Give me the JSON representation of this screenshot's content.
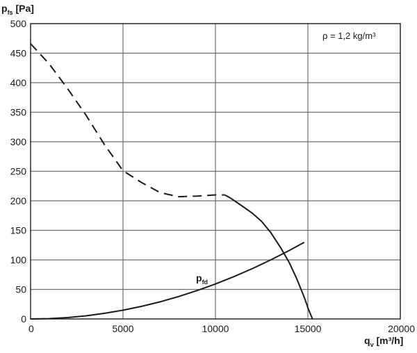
{
  "chart_data": {
    "type": "line",
    "x_axis": {
      "label_main": "q",
      "label_sub": "v",
      "label_unit": " [m³/h]",
      "min": 0,
      "max": 20000,
      "ticks": [
        0,
        5000,
        10000,
        15000,
        20000
      ],
      "tick_labels": [
        "0",
        "5000",
        "10000",
        "15000",
        "20000"
      ]
    },
    "y_axis": {
      "label_main": "p",
      "label_sub": "fs",
      "label_unit": " [Pa]",
      "min": 0,
      "max": 500,
      "ticks": [
        0,
        50,
        100,
        150,
        200,
        250,
        300,
        350,
        400,
        450,
        500
      ],
      "tick_labels": [
        "0",
        "50",
        "100",
        "150",
        "200",
        "250",
        "300",
        "350",
        "400",
        "450",
        "500"
      ]
    },
    "grid": true,
    "annotation": "ρ = 1,2 kg/m³",
    "series": [
      {
        "style": "dashed",
        "color": "#1a1a1a",
        "points": [
          [
            0,
            466
          ],
          [
            1000,
            432
          ],
          [
            2000,
            390
          ],
          [
            3000,
            345
          ],
          [
            4000,
            295
          ],
          [
            5000,
            251
          ],
          [
            6000,
            231
          ],
          [
            7000,
            214
          ],
          [
            8000,
            207
          ],
          [
            9000,
            208
          ],
          [
            10000,
            210
          ],
          [
            10500,
            210
          ]
        ]
      },
      {
        "style": "solid",
        "color": "#1a1a1a",
        "points": [
          [
            10500,
            210
          ],
          [
            10800,
            205
          ],
          [
            11500,
            190
          ],
          [
            12000,
            179
          ],
          [
            12500,
            165
          ],
          [
            13000,
            146
          ],
          [
            13500,
            122
          ],
          [
            14000,
            95
          ],
          [
            14400,
            68
          ],
          [
            14800,
            37
          ],
          [
            15050,
            15
          ],
          [
            15250,
            0
          ]
        ]
      },
      {
        "name": "p",
        "name_sub": "fd",
        "style": "solid",
        "color": "#1a1a1a",
        "points": [
          [
            0,
            0
          ],
          [
            1000,
            0.6
          ],
          [
            2000,
            2.4
          ],
          [
            3000,
            5.3
          ],
          [
            4000,
            9.5
          ],
          [
            5000,
            14.8
          ],
          [
            6000,
            21.3
          ],
          [
            7000,
            29
          ],
          [
            8000,
            37.9
          ],
          [
            9000,
            48
          ],
          [
            10000,
            59.2
          ],
          [
            11000,
            71.7
          ],
          [
            12000,
            85.3
          ],
          [
            13000,
            100.1
          ],
          [
            14000,
            116
          ],
          [
            14800,
            129.7
          ]
        ]
      }
    ]
  }
}
